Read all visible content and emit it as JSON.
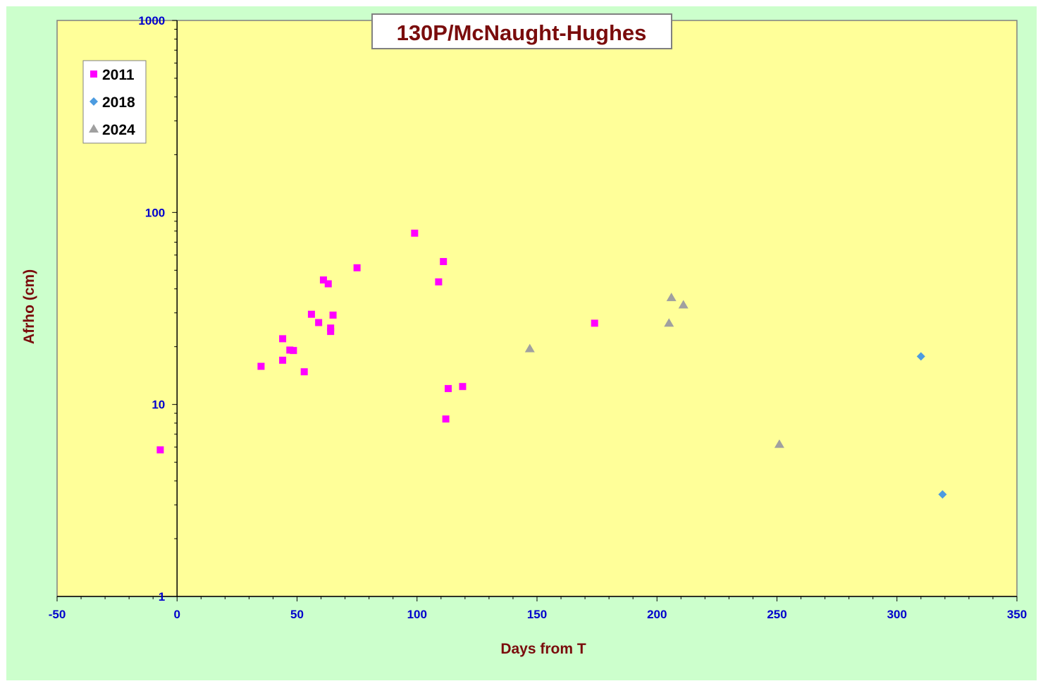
{
  "chart_data": {
    "type": "scatter",
    "title": "130P/McNaught-Hughes",
    "xlabel": "Days from T",
    "ylabel": "Afrho (cm)",
    "xlim": [
      -50,
      350
    ],
    "ylim": [
      1,
      1000
    ],
    "yscale": "log",
    "x_ticks": [
      -50,
      0,
      50,
      100,
      150,
      200,
      250,
      300,
      350
    ],
    "y_ticks": [
      1,
      10,
      100,
      1000
    ],
    "grid": false,
    "legend_position": "top-left",
    "colors": {
      "outer_background": "#ccffcc",
      "plot_background": "#ffff99",
      "title_color": "#7a0c0c",
      "tick_color": "#0000cc"
    },
    "series": [
      {
        "name": "2011",
        "marker": "square",
        "color": "#ff00ff",
        "points": [
          [
            -7,
            5.8
          ],
          [
            35,
            15.8
          ],
          [
            44,
            22
          ],
          [
            44,
            17
          ],
          [
            47,
            19.2
          ],
          [
            48.5,
            19.1
          ],
          [
            53,
            14.8
          ],
          [
            56,
            29.5
          ],
          [
            59,
            26.7
          ],
          [
            61,
            44.5
          ],
          [
            63,
            42.5
          ],
          [
            64,
            25
          ],
          [
            64,
            24
          ],
          [
            65,
            29.2
          ],
          [
            75,
            51.5
          ],
          [
            99,
            78
          ],
          [
            109,
            43.5
          ],
          [
            111,
            55.5
          ],
          [
            112,
            8.4
          ],
          [
            113,
            12.1
          ],
          [
            119,
            12.4
          ],
          [
            174,
            26.5
          ]
        ]
      },
      {
        "name": "2018",
        "marker": "diamond",
        "color": "#4c9be0",
        "points": [
          [
            310,
            17.8
          ],
          [
            319,
            3.4
          ]
        ]
      },
      {
        "name": "2024",
        "marker": "triangle",
        "color": "#a0a0a0",
        "points": [
          [
            147,
            19.5
          ],
          [
            205,
            26.5
          ],
          [
            206,
            36
          ],
          [
            211,
            33
          ],
          [
            251,
            6.2
          ]
        ]
      }
    ]
  }
}
